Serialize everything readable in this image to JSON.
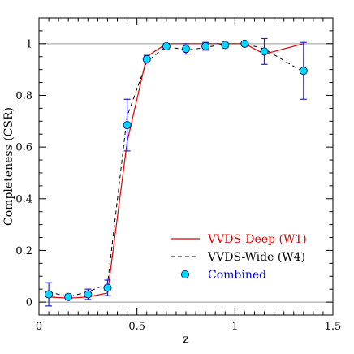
{
  "chart_data": {
    "type": "line",
    "title": "",
    "xlabel": "z",
    "ylabel": "Completeness (CSR)",
    "xlim": [
      0,
      1.5
    ],
    "ylim": [
      -0.05,
      1.1
    ],
    "grid": false,
    "reference_lines_y": [
      0,
      1
    ],
    "x_ticks": [
      "0",
      "0.5",
      "1",
      "1.5"
    ],
    "y_ticks": [
      "0",
      "0.2",
      "0.4",
      "0.6",
      "0.8",
      "1"
    ],
    "legend_position": "bottom-right",
    "series": [
      {
        "name": "VVDS-Deep (W1)",
        "style": "solid",
        "color": "#e00000",
        "x": [
          0.05,
          0.15,
          0.25,
          0.35,
          0.45,
          0.55,
          0.65,
          0.75,
          0.85,
          0.95,
          1.05,
          1.15,
          1.35
        ],
        "y": [
          0.02,
          0.015,
          0.02,
          0.035,
          0.62,
          0.95,
          1.0,
          1.0,
          1.0,
          1.0,
          1.0,
          0.96,
          1.0
        ]
      },
      {
        "name": "VVDS-Wide (W4)",
        "style": "dashed",
        "color": "#000000",
        "x": [
          0.05,
          0.15,
          0.25,
          0.35,
          0.45,
          0.55,
          0.65,
          0.75,
          0.85,
          0.95,
          1.05,
          1.15,
          1.35
        ],
        "y": [
          0.04,
          0.02,
          0.04,
          0.07,
          0.72,
          0.93,
          0.99,
          0.975,
          0.985,
          1.0,
          1.0,
          0.98,
          0.89
        ]
      },
      {
        "name": "Combined",
        "style": "markers",
        "color": "#00d8ff",
        "x": [
          0.05,
          0.15,
          0.25,
          0.35,
          0.45,
          0.55,
          0.65,
          0.75,
          0.85,
          0.95,
          1.05,
          1.15,
          1.35
        ],
        "y": [
          0.03,
          0.02,
          0.03,
          0.055,
          0.685,
          0.94,
          0.99,
          0.98,
          0.99,
          0.995,
          1.0,
          0.97,
          0.895
        ],
        "err": [
          0.045,
          0.01,
          0.02,
          0.03,
          0.1,
          0.015,
          0.01,
          0.02,
          0.015,
          0.01,
          0.005,
          0.05,
          0.11
        ]
      }
    ],
    "colors": {
      "axis": "#000000",
      "reference_line": "#999999",
      "errorbar": "#2222cc",
      "marker_edge": "#000055",
      "legend_combined_text": "#0000cc"
    }
  }
}
